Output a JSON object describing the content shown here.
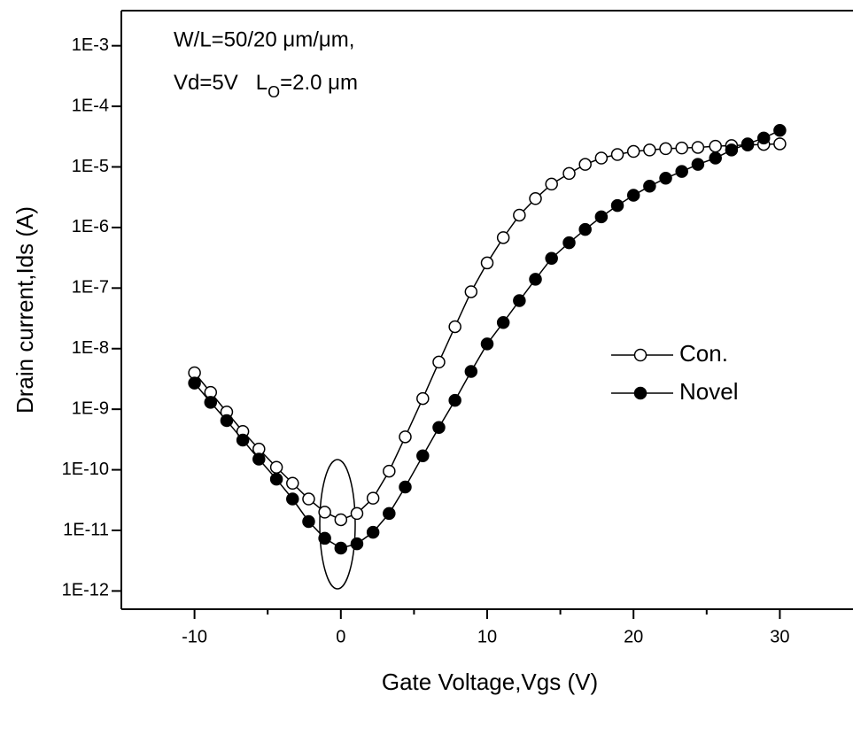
{
  "chart_data": {
    "type": "line",
    "xlabel": "Gate Voltage,Vgs (V)",
    "ylabel": "Drain current,Ids (A)",
    "annotations": [
      "W/L=50/20 μm/μm,",
      [
        "Vd=5V   L",
        "O",
        "=2.0 μm"
      ]
    ],
    "log_y": true,
    "xlim": [
      -15,
      35
    ],
    "xticks": [
      -10,
      0,
      10,
      20,
      30
    ],
    "xminorticks": [
      -5,
      5,
      15,
      25
    ],
    "ylim": [
      5e-13,
      0.0038
    ],
    "yticks": [
      {
        "value": 1e-12,
        "label": "1E-12"
      },
      {
        "value": 1e-11,
        "label": "1E-11"
      },
      {
        "value": 1e-10,
        "label": "1E-10"
      },
      {
        "value": 1e-09,
        "label": "1E-9"
      },
      {
        "value": 1e-08,
        "label": "1E-8"
      },
      {
        "value": 1e-07,
        "label": "1E-7"
      },
      {
        "value": 1e-06,
        "label": "1E-6"
      },
      {
        "value": 1e-05,
        "label": "1E-5"
      },
      {
        "value": 0.0001,
        "label": "1E-4"
      },
      {
        "value": 0.001,
        "label": "1E-3"
      }
    ],
    "legend": "right",
    "x": [
      -10,
      -8.9,
      -7.8,
      -6.7,
      -5.6,
      -4.4,
      -3.3,
      -2.2,
      -1.1,
      0,
      1.1,
      2.2,
      3.3,
      4.4,
      5.6,
      6.7,
      7.8,
      8.9,
      10,
      11.1,
      12.2,
      13.3,
      14.4,
      15.6,
      16.7,
      17.8,
      18.9,
      20,
      21.1,
      22.2,
      23.3,
      24.4,
      25.6,
      26.7,
      27.8,
      28.9,
      30
    ],
    "series": [
      {
        "name": "Con.",
        "color": "#000000",
        "marker": "open",
        "values": [
          4e-09,
          1.9e-09,
          9e-10,
          4.3e-10,
          2.2e-10,
          1.1e-10,
          6e-11,
          3.3e-11,
          2e-11,
          1.5e-11,
          1.9e-11,
          3.4e-11,
          9.5e-11,
          3.5e-10,
          1.5e-09,
          6e-09,
          2.3e-08,
          8.7e-08,
          2.6e-07,
          6.8e-07,
          1.6e-06,
          3e-06,
          5.2e-06,
          7.8e-06,
          1.1e-05,
          1.4e-05,
          1.6e-05,
          1.8e-05,
          1.9e-05,
          2e-05,
          2.05e-05,
          2.1e-05,
          2.2e-05,
          2.25e-05,
          2.3e-05,
          2.35e-05,
          2.4e-05
        ]
      },
      {
        "name": "Novel",
        "color": "#000000",
        "marker": "filled",
        "values": [
          2.7e-09,
          1.3e-09,
          6.5e-10,
          3.1e-10,
          1.5e-10,
          7e-11,
          3.3e-11,
          1.4e-11,
          7.4e-12,
          5.1e-12,
          6e-12,
          9.3e-12,
          1.9e-11,
          5.2e-11,
          1.7e-10,
          5e-10,
          1.4e-09,
          4.2e-09,
          1.2e-08,
          2.7e-08,
          6.2e-08,
          1.4e-07,
          3.1e-07,
          5.6e-07,
          9.3e-07,
          1.5e-06,
          2.3e-06,
          3.4e-06,
          4.8e-06,
          6.5e-06,
          8.4e-06,
          1.1e-05,
          1.4e-05,
          1.9e-05,
          2.4e-05,
          3e-05,
          4e-05
        ]
      }
    ]
  }
}
